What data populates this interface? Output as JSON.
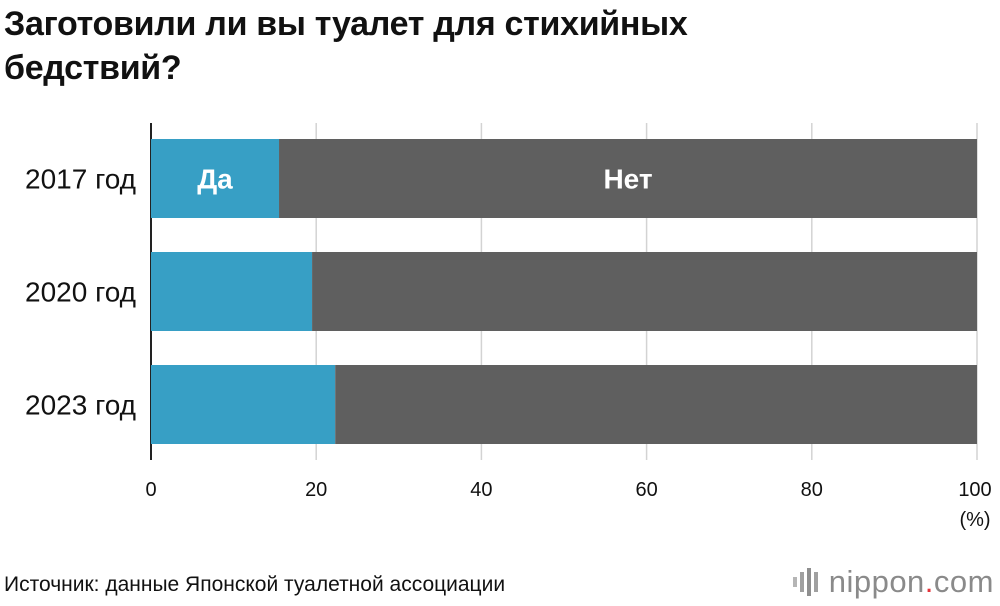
{
  "title": "Заготовили ли вы туалет для стихийных бедствий?",
  "source": "Источник: данные Японской туалетной ассоциации",
  "logo": {
    "name": "nippon",
    "dot": ".",
    "tld": "com"
  },
  "chart_data": {
    "type": "bar",
    "orientation": "horizontal",
    "stacked": true,
    "categories": [
      "2017 год",
      "2020 год",
      "2023 год"
    ],
    "series": [
      {
        "name": "Да",
        "values": [
          15.5,
          19.5,
          22.3
        ],
        "color": "#379fc5"
      },
      {
        "name": "Нет",
        "values": [
          84.5,
          80.5,
          77.7
        ],
        "color": "#5f5f5f"
      }
    ],
    "xlim": [
      0,
      100
    ],
    "xticks": [
      0,
      20,
      40,
      60,
      80,
      100
    ],
    "xunit": "(%)",
    "grid": true,
    "grid_color": "#d3d3d3"
  }
}
